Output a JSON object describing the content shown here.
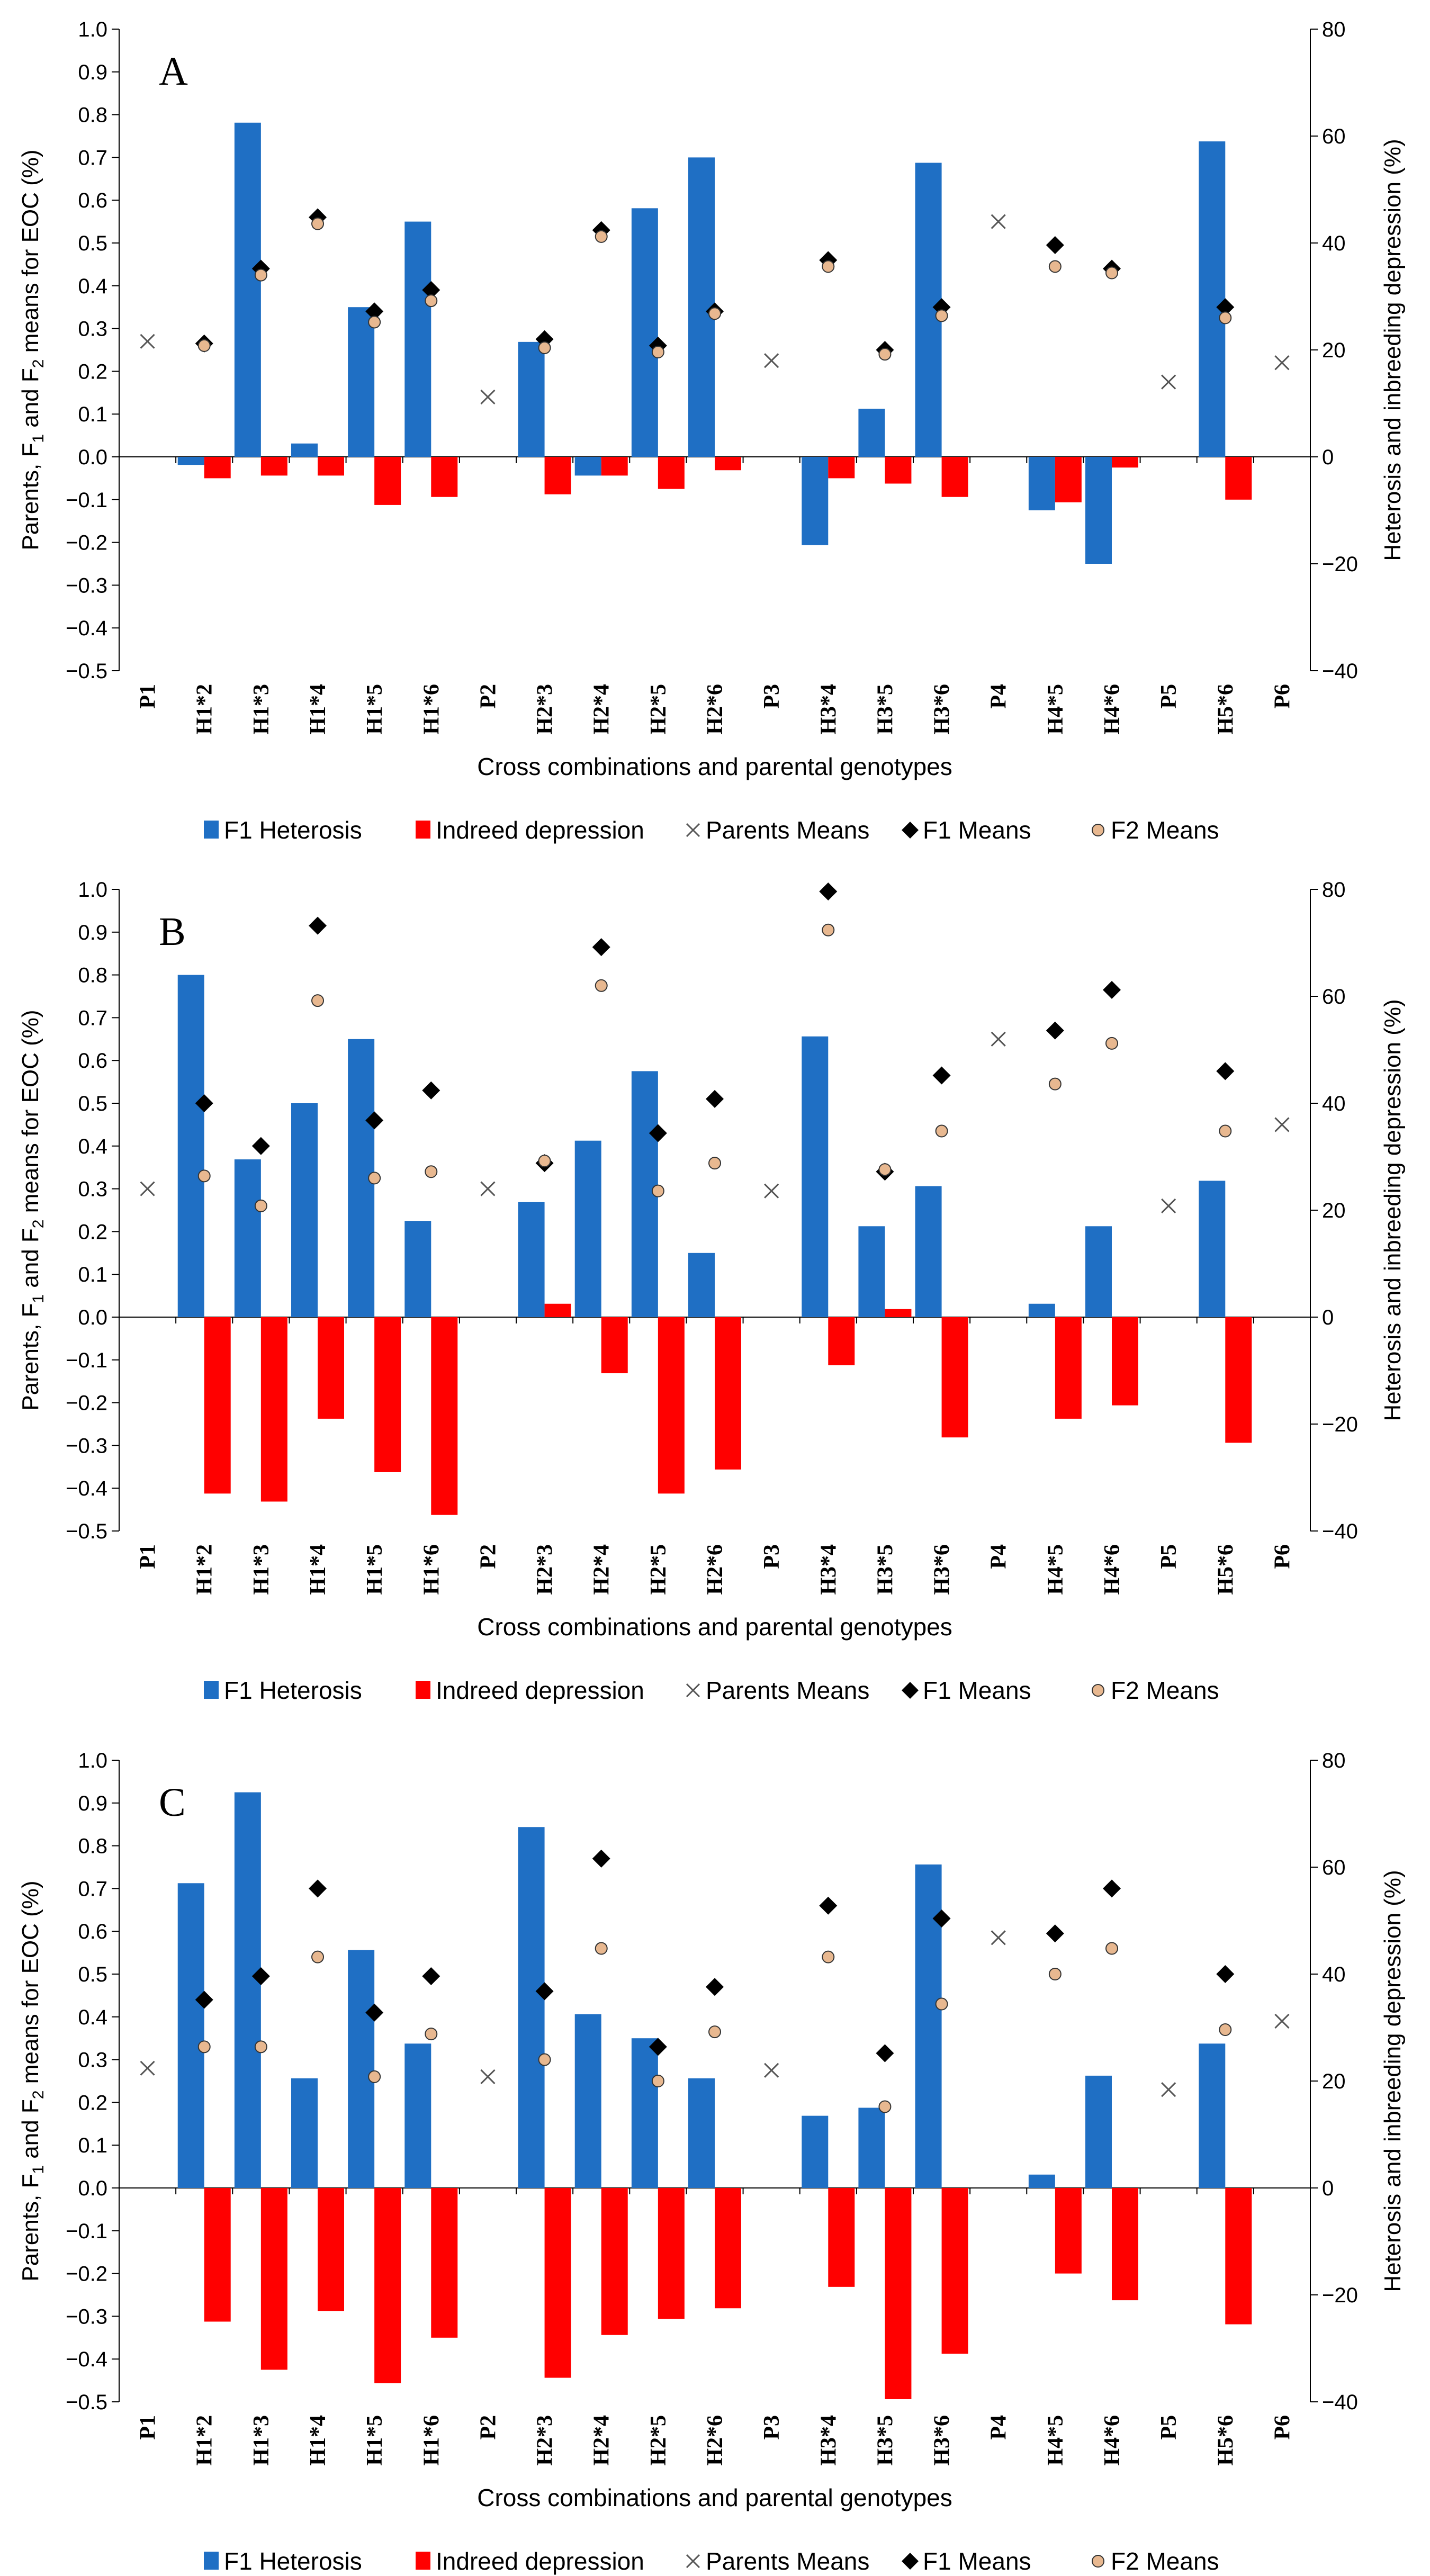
{
  "legend_items": [
    {
      "key": "heterosis",
      "label": "F1 Heterosis",
      "color": "#1f6fc4",
      "marker": "bar"
    },
    {
      "key": "inbreeding",
      "label": "Indreed depression",
      "color": "#ff0000",
      "marker": "bar"
    },
    {
      "key": "parents",
      "label": "Parents Means",
      "color": "#555555",
      "marker": "x"
    },
    {
      "key": "f1",
      "label": "F1 Means",
      "color": "#000000",
      "marker": "diamond"
    },
    {
      "key": "f2",
      "label": "F2 Means",
      "color": "#e8b890",
      "marker": "circle"
    }
  ],
  "axes_text": {
    "xlabel": "Cross combinations and parental genotypes",
    "ylabel_left_a": "Parents, F",
    "ylabel_left_sub1": "1",
    "ylabel_left_b": " and F",
    "ylabel_left_sub2": "2",
    "ylabel_left_c": " means for EOC (%)",
    "ylabel_right": "Heterosis and inbreeding depression (%)"
  },
  "chart_data": [
    {
      "type": "bar",
      "panel_label": "A",
      "categories": [
        "P1",
        "H1*2",
        "H1*3",
        "H1*4",
        "H1*5",
        "H1*6",
        "P2",
        "H2*3",
        "H2*4",
        "H2*5",
        "H2*6",
        "P3",
        "H3*4",
        "H3*5",
        "H3*6",
        "P4",
        "H4*5",
        "H4*6",
        "P5",
        "H5*6",
        "P6"
      ],
      "left_axis": {
        "min": -0.5,
        "max": 1.0,
        "step": 0.1
      },
      "right_axis": {
        "min": -40,
        "max": 80,
        "step": 20
      },
      "series": [
        {
          "key": "heterosis",
          "name": "F1 Heterosis",
          "axis": "right",
          "render": "bar",
          "values": [
            null,
            -1.5,
            62.5,
            2.5,
            28,
            44,
            null,
            21.5,
            -3.5,
            46.5,
            56,
            null,
            -16.5,
            9,
            55,
            null,
            -10,
            -20,
            null,
            59,
            null
          ]
        },
        {
          "key": "inbreeding",
          "name": "Indreed depression",
          "axis": "right",
          "render": "bar",
          "values": [
            null,
            -4,
            -3.5,
            -3.5,
            -9,
            -7.5,
            null,
            -7,
            -3.5,
            -6,
            -2.5,
            null,
            -4,
            -5,
            -7.5,
            null,
            -8.5,
            -2,
            null,
            -8,
            null
          ]
        },
        {
          "key": "parents",
          "name": "Parents Means",
          "axis": "left",
          "render": "x",
          "values": [
            0.27,
            null,
            null,
            null,
            null,
            null,
            0.14,
            null,
            null,
            null,
            null,
            0.225,
            null,
            null,
            null,
            0.55,
            null,
            null,
            0.175,
            null,
            0.22
          ]
        },
        {
          "key": "f1",
          "name": "F1 Means",
          "axis": "left",
          "render": "diamond",
          "values": [
            null,
            0.265,
            0.44,
            0.56,
            0.34,
            0.39,
            null,
            0.275,
            0.53,
            0.26,
            0.34,
            null,
            0.46,
            0.25,
            0.35,
            null,
            0.495,
            0.44,
            null,
            0.35,
            null
          ]
        },
        {
          "key": "f2",
          "name": "F2 Means",
          "axis": "left",
          "render": "circle",
          "values": [
            null,
            0.26,
            0.425,
            0.545,
            0.315,
            0.365,
            null,
            0.255,
            0.515,
            0.245,
            0.335,
            null,
            0.445,
            0.24,
            0.33,
            null,
            0.445,
            0.43,
            null,
            0.325,
            null
          ]
        }
      ]
    },
    {
      "type": "bar",
      "panel_label": "B",
      "categories": [
        "P1",
        "H1*2",
        "H1*3",
        "H1*4",
        "H1*5",
        "H1*6",
        "P2",
        "H2*3",
        "H2*4",
        "H2*5",
        "H2*6",
        "P3",
        "H3*4",
        "H3*5",
        "H3*6",
        "P4",
        "H4*5",
        "H4*6",
        "P5",
        "H5*6",
        "P6"
      ],
      "left_axis": {
        "min": -0.5,
        "max": 1.0,
        "step": 0.1
      },
      "right_axis": {
        "min": -40,
        "max": 80,
        "step": 20
      },
      "series": [
        {
          "key": "heterosis",
          "name": "F1 Heterosis",
          "axis": "right",
          "render": "bar",
          "values": [
            null,
            64,
            29.5,
            40,
            52,
            18,
            null,
            21.5,
            33,
            46,
            12,
            null,
            52.5,
            17,
            24.5,
            null,
            2.5,
            17,
            null,
            25.5,
            null
          ]
        },
        {
          "key": "inbreeding",
          "name": "Indreed depression",
          "axis": "right",
          "render": "bar",
          "values": [
            null,
            -33,
            -34.5,
            -19,
            -29,
            -37,
            null,
            2.5,
            -10.5,
            -33,
            -28.5,
            null,
            -9,
            1.5,
            -22.5,
            null,
            -19,
            -16.5,
            null,
            -23.5,
            null
          ]
        },
        {
          "key": "parents",
          "name": "Parents Means",
          "axis": "left",
          "render": "x",
          "values": [
            0.3,
            null,
            null,
            null,
            null,
            null,
            0.3,
            null,
            null,
            null,
            null,
            0.295,
            null,
            null,
            null,
            0.65,
            null,
            null,
            0.26,
            null,
            0.45
          ]
        },
        {
          "key": "f1",
          "name": "F1 Means",
          "axis": "left",
          "render": "diamond",
          "values": [
            null,
            0.5,
            0.4,
            0.915,
            0.46,
            0.53,
            null,
            0.36,
            0.865,
            0.43,
            0.51,
            null,
            0.995,
            0.34,
            0.565,
            null,
            0.67,
            0.765,
            null,
            0.575,
            null
          ]
        },
        {
          "key": "f2",
          "name": "F2 Means",
          "axis": "left",
          "render": "circle",
          "values": [
            null,
            0.33,
            0.26,
            0.74,
            0.325,
            0.34,
            null,
            0.365,
            0.775,
            0.295,
            0.36,
            null,
            0.905,
            0.345,
            0.435,
            null,
            0.545,
            0.64,
            null,
            0.435,
            null
          ]
        }
      ]
    },
    {
      "type": "bar",
      "panel_label": "C",
      "categories": [
        "P1",
        "H1*2",
        "H1*3",
        "H1*4",
        "H1*5",
        "H1*6",
        "P2",
        "H2*3",
        "H2*4",
        "H2*5",
        "H2*6",
        "P3",
        "H3*4",
        "H3*5",
        "H3*6",
        "P4",
        "H4*5",
        "H4*6",
        "P5",
        "H5*6",
        "P6"
      ],
      "left_axis": {
        "min": -0.5,
        "max": 1.0,
        "step": 0.1
      },
      "right_axis": {
        "min": -40,
        "max": 80,
        "step": 20
      },
      "series": [
        {
          "key": "heterosis",
          "name": "F1 Heterosis",
          "axis": "right",
          "render": "bar",
          "values": [
            null,
            57,
            74,
            20.5,
            44.5,
            27,
            null,
            67.5,
            32.5,
            28,
            20.5,
            null,
            13.5,
            15,
            60.5,
            null,
            2.5,
            21,
            null,
            27,
            null
          ]
        },
        {
          "key": "inbreeding",
          "name": "Indreed depression",
          "axis": "right",
          "render": "bar",
          "values": [
            null,
            -25,
            -34,
            -23,
            -36.5,
            -28,
            null,
            -35.5,
            -27.5,
            -24.5,
            -22.5,
            null,
            -18.5,
            -39.5,
            -31,
            null,
            -16,
            -21,
            null,
            -25.5,
            null
          ]
        },
        {
          "key": "parents",
          "name": "Parents Means",
          "axis": "left",
          "render": "x",
          "values": [
            0.28,
            null,
            null,
            null,
            null,
            null,
            0.26,
            null,
            null,
            null,
            null,
            0.275,
            null,
            null,
            null,
            0.585,
            null,
            null,
            0.23,
            null,
            0.39
          ]
        },
        {
          "key": "f1",
          "name": "F1 Means",
          "axis": "left",
          "render": "diamond",
          "values": [
            null,
            0.44,
            0.495,
            0.7,
            0.41,
            0.495,
            null,
            0.46,
            0.77,
            0.33,
            0.47,
            null,
            0.66,
            0.315,
            0.63,
            null,
            0.595,
            0.7,
            null,
            0.5,
            null
          ]
        },
        {
          "key": "f2",
          "name": "F2 Means",
          "axis": "left",
          "render": "circle",
          "values": [
            null,
            0.33,
            0.33,
            0.54,
            0.26,
            0.36,
            null,
            0.3,
            0.56,
            0.25,
            0.365,
            null,
            0.54,
            0.19,
            0.43,
            null,
            0.5,
            0.56,
            null,
            0.37,
            null
          ]
        }
      ]
    }
  ]
}
